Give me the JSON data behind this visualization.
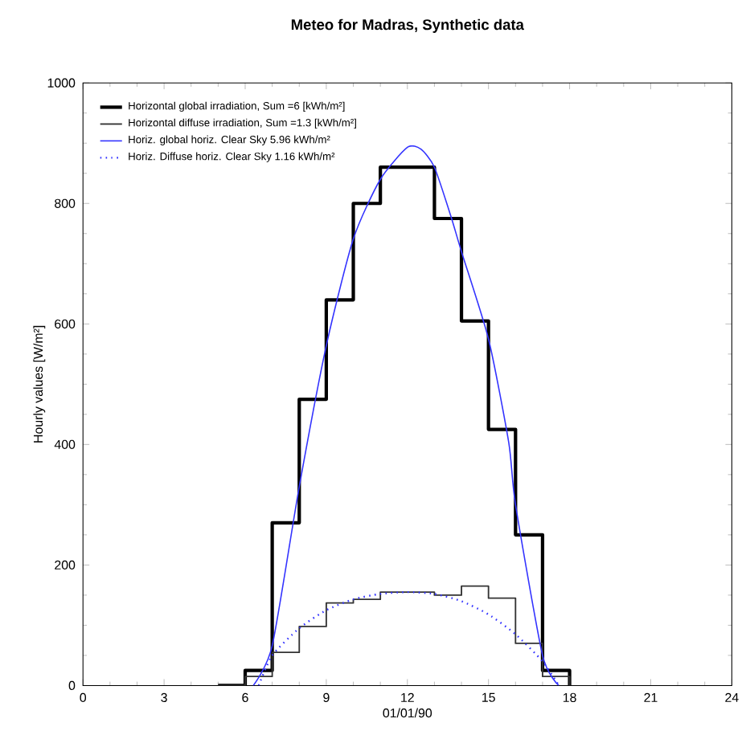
{
  "chart_data": {
    "type": "line",
    "title": "Meteo for Madras,  Synthetic data",
    "xlabel": "01/01/90",
    "ylabel": "Hourly values  [W/m²]",
    "xlim": [
      0,
      24
    ],
    "xticks": [
      0,
      3,
      6,
      9,
      12,
      15,
      18,
      21,
      24
    ],
    "ylim": [
      0,
      1000
    ],
    "yticks": [
      0,
      200,
      400,
      600,
      800,
      1000
    ],
    "grid": false,
    "legend": "top left",
    "marker": "none",
    "series": [
      {
        "name": "Horizontal global irradiation,  Sum =6 [kWh/m²]",
        "type": "step",
        "color": "#000000",
        "x": [
          5,
          6,
          7,
          8,
          9,
          10,
          11,
          12,
          13,
          14,
          15,
          16,
          17,
          18
        ],
        "values": [
          0,
          25,
          270,
          475,
          640,
          800,
          860,
          860,
          775,
          605,
          425,
          250,
          25,
          0
        ]
      },
      {
        "name": "Horizontal diffuse irradiation,  Sum =1.3 [kWh/m²]",
        "type": "step",
        "color": "#333333",
        "x": [
          5,
          6,
          7,
          8,
          9,
          10,
          11,
          12,
          13,
          14,
          15,
          16,
          17,
          18
        ],
        "values": [
          0,
          15,
          55,
          98,
          137,
          143,
          155,
          155,
          150,
          165,
          145,
          70,
          15,
          0
        ]
      },
      {
        "name": "Horiz. global horiz.  Clear Sky   5.96 kWh/m²",
        "line_style": "solid",
        "color": "#3333ff",
        "x": [
          6.3,
          7,
          8,
          9,
          10,
          11,
          12,
          12.5,
          13,
          13.6,
          14,
          15,
          15.75,
          16,
          17,
          17.6
        ],
        "values": [
          0,
          66,
          330,
          564,
          741,
          840,
          893,
          890,
          860,
          780,
          720,
          575,
          403,
          300,
          50,
          0
        ]
      },
      {
        "name": "Horiz. Diffuse horiz.  Clear Sky   1.16 kWh/m²",
        "line_style": "dotted",
        "color": "#3333ff",
        "x": [
          6.5,
          7,
          8,
          9,
          10,
          11,
          12,
          13,
          14,
          15,
          16,
          17,
          17.6
        ],
        "values": [
          0,
          50,
          95,
          125,
          143,
          152,
          155,
          152,
          140,
          118,
          85,
          40,
          0
        ]
      }
    ]
  }
}
